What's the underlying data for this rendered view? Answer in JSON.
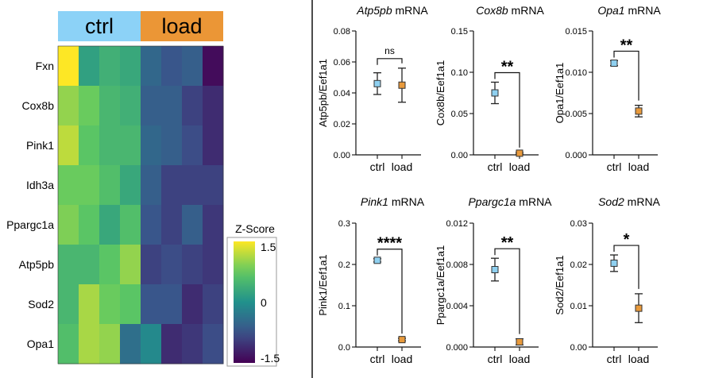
{
  "heatmap": {
    "type": "heatmap",
    "group_labels": [
      "ctrl",
      "load"
    ],
    "group_colors": [
      "#8cd2f7",
      "#eb9636"
    ],
    "genes": [
      "Fxn",
      "Cox8b",
      "Pink1",
      "Idh3a",
      "Ppargc1a",
      "Atp5pb",
      "Sod2",
      "Opa1"
    ],
    "columns_per_group": 4,
    "z_values": [
      [
        1.5,
        0.2,
        0.4,
        0.3,
        -0.5,
        -0.7,
        -0.6,
        -1.4
      ],
      [
        1.0,
        0.8,
        0.5,
        0.4,
        -0.6,
        -0.6,
        -0.9,
        -1.1
      ],
      [
        1.2,
        0.7,
        0.5,
        0.5,
        -0.5,
        -0.6,
        -0.8,
        -1.1
      ],
      [
        0.8,
        0.8,
        0.6,
        0.3,
        -0.6,
        -0.9,
        -0.9,
        -0.9
      ],
      [
        0.9,
        0.7,
        0.3,
        0.6,
        -0.7,
        -0.9,
        -0.6,
        -1.0
      ],
      [
        0.5,
        0.5,
        0.7,
        1.0,
        -0.9,
        -0.8,
        -0.9,
        -1.0
      ],
      [
        0.5,
        1.1,
        0.8,
        0.7,
        -0.7,
        -0.7,
        -1.1,
        -0.9
      ],
      [
        0.6,
        1.1,
        1.0,
        -0.4,
        -0.1,
        -1.1,
        -1.0,
        -0.8
      ]
    ],
    "colorbar": {
      "title": "Z-Score",
      "ticks": [
        "1.5",
        "0",
        "-1.5"
      ],
      "range": [
        -1.5,
        1.5
      ]
    }
  },
  "chart_data": [
    {
      "type": "scatter",
      "title_gene": "Atp5pb",
      "title_suffix": " mRNA",
      "ylabel": "Atp5pb/Eef1a1",
      "categories": [
        "ctrl",
        "load"
      ],
      "values": [
        0.046,
        0.045
      ],
      "errors": [
        0.007,
        0.011
      ],
      "ylim": [
        0,
        0.08
      ],
      "yticks": [
        "0.00",
        "0.02",
        "0.04",
        "0.06",
        "0.08"
      ],
      "significance": "ns"
    },
    {
      "type": "scatter",
      "title_gene": "Cox8b",
      "title_suffix": " mRNA",
      "ylabel": "Cox8b/Eef1a1",
      "categories": [
        "ctrl",
        "load"
      ],
      "values": [
        0.075,
        0.002
      ],
      "errors": [
        0.013,
        0.001
      ],
      "ylim": [
        0,
        0.15
      ],
      "yticks": [
        "0.00",
        "0.05",
        "0.10",
        "0.15"
      ],
      "significance": "**"
    },
    {
      "type": "scatter",
      "title_gene": "Opa1",
      "title_suffix": " mRNA",
      "ylabel": "Opa1/Eef1a1",
      "categories": [
        "ctrl",
        "load"
      ],
      "values": [
        0.0111,
        0.0053
      ],
      "errors": [
        0.0003,
        0.0007
      ],
      "ylim": [
        0,
        0.015
      ],
      "yticks": [
        "0.000",
        "0.005",
        "0.010",
        "0.015"
      ],
      "significance": "**"
    },
    {
      "type": "scatter",
      "title_gene": "Pink1",
      "title_suffix": " mRNA",
      "ylabel": "Pink1/Eef1a1",
      "categories": [
        "ctrl",
        "load"
      ],
      "values": [
        0.21,
        0.018
      ],
      "errors": [
        0.004,
        0.003
      ],
      "ylim": [
        0,
        0.3
      ],
      "yticks": [
        "0.0",
        "0.1",
        "0.2",
        "0.3"
      ],
      "significance": "****"
    },
    {
      "type": "scatter",
      "title_gene": "Ppargc1a",
      "title_suffix": " mRNA",
      "ylabel": "Ppargc1a/Eef1a1",
      "categories": [
        "ctrl",
        "load"
      ],
      "values": [
        0.0075,
        0.0005
      ],
      "errors": [
        0.0011,
        0.0003
      ],
      "ylim": [
        0,
        0.012
      ],
      "yticks": [
        "0.000",
        "0.004",
        "0.008",
        "0.012"
      ],
      "significance": "**"
    },
    {
      "type": "scatter",
      "title_gene": "Sod2",
      "title_suffix": " mRNA",
      "ylabel": "Sod2/Eef1a1",
      "categories": [
        "ctrl",
        "load"
      ],
      "values": [
        0.0203,
        0.0094
      ],
      "errors": [
        0.002,
        0.0035
      ],
      "ylim": [
        0,
        0.03
      ],
      "yticks": [
        "0.00",
        "0.01",
        "0.02",
        "0.03"
      ],
      "significance": "*"
    }
  ],
  "marker_colors": {
    "ctrl": "#8fd0f0",
    "load": "#e89a3c"
  }
}
